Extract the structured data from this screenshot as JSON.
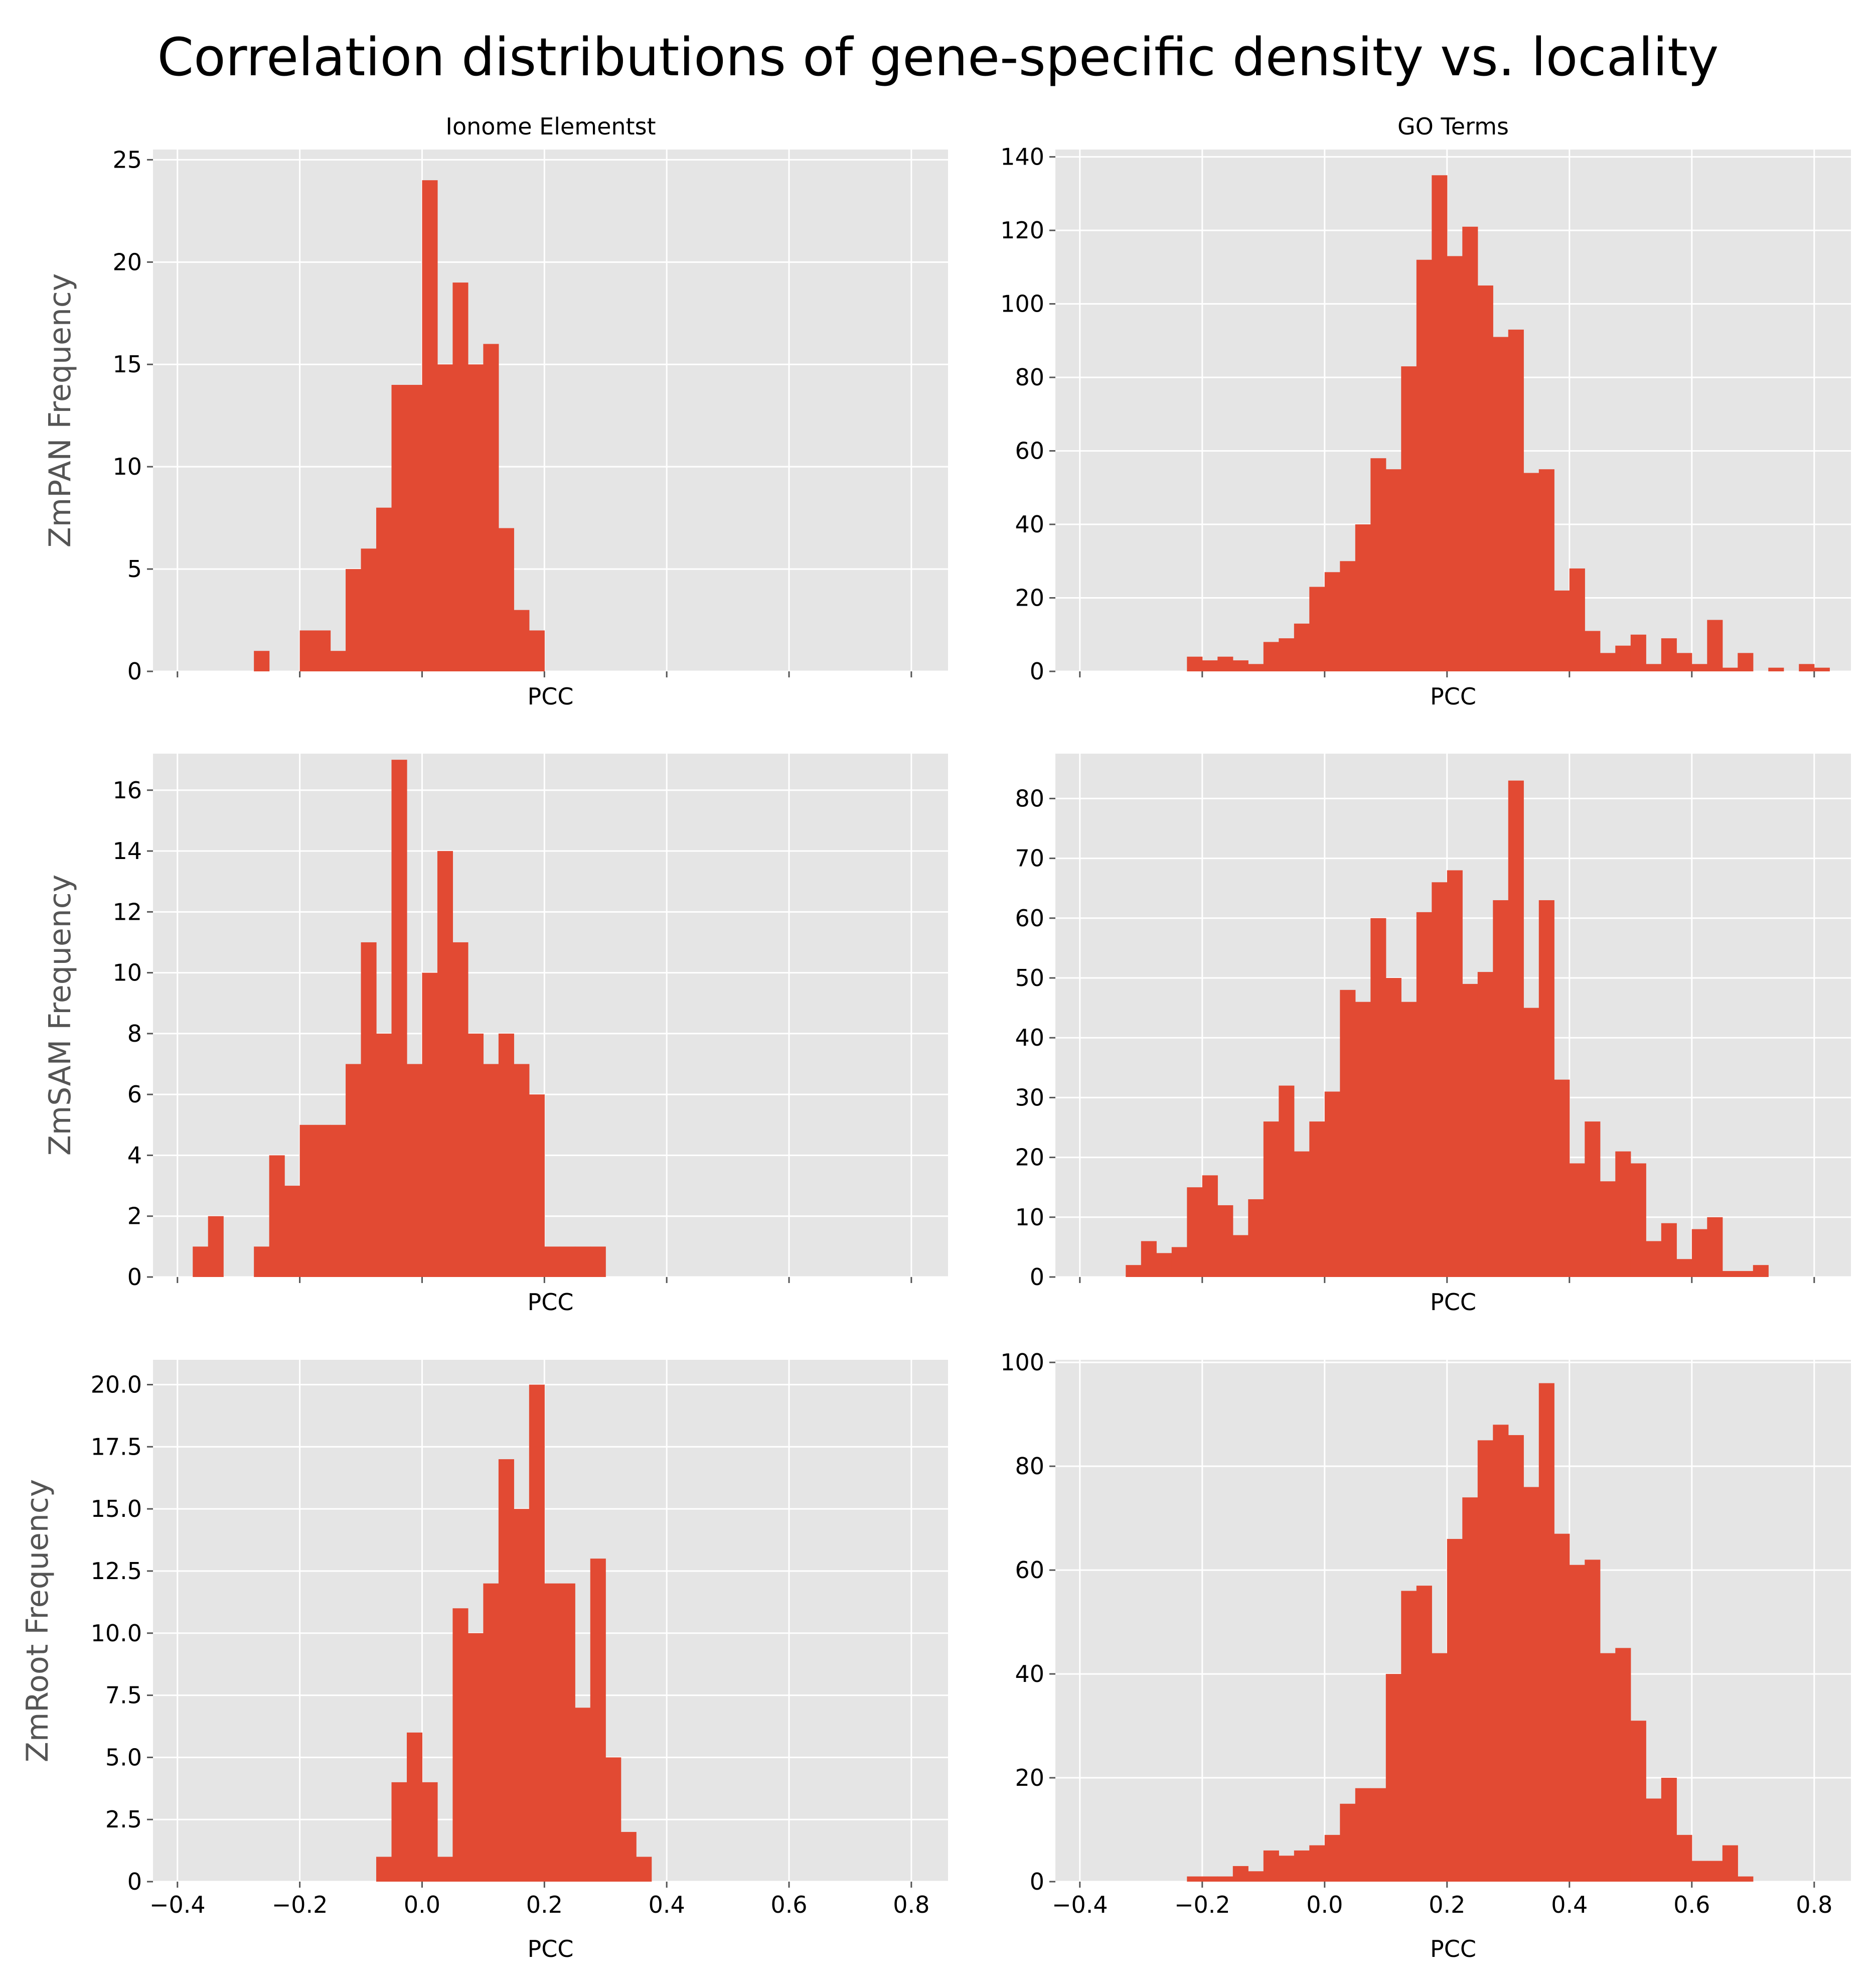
{
  "title": "Correlation distributions of gene-specific density vs. locality",
  "colors": {
    "panel_bg": "#e5e5e5",
    "grid": "#ffffff",
    "bar": "#e24a33",
    "tick": "#555555"
  },
  "chart_data": [
    {
      "type": "bar",
      "column_title": "Ionome Elementst",
      "ylabel": "ZmPAN Frequency",
      "xlabel": "PCC",
      "xlim": [
        -0.44,
        0.86
      ],
      "ylim": [
        0,
        25.5
      ],
      "xticks": [
        -0.4,
        -0.2,
        0.0,
        0.2,
        0.4,
        0.6,
        0.8
      ],
      "show_xticklabels": false,
      "yticks": [
        0,
        5,
        10,
        15,
        20,
        25
      ],
      "ytick_labels": [
        "0",
        "5",
        "10",
        "15",
        "20",
        "25"
      ],
      "bin_width": 0.025,
      "bins": [
        [
          -0.2625,
          1
        ],
        [
          -0.1875,
          2
        ],
        [
          -0.1625,
          2
        ],
        [
          -0.1375,
          1
        ],
        [
          -0.1125,
          5
        ],
        [
          -0.0875,
          6
        ],
        [
          -0.0625,
          8
        ],
        [
          -0.0375,
          14
        ],
        [
          -0.0125,
          14
        ],
        [
          0.0125,
          24
        ],
        [
          0.0375,
          15
        ],
        [
          0.0625,
          19
        ],
        [
          0.0875,
          15
        ],
        [
          0.1125,
          16
        ],
        [
          0.1375,
          7
        ],
        [
          0.1625,
          3
        ],
        [
          0.1875,
          2
        ]
      ]
    },
    {
      "type": "bar",
      "column_title": "GO Terms",
      "ylabel": "",
      "xlabel": "PCC",
      "xlim": [
        -0.44,
        0.86
      ],
      "ylim": [
        0,
        142
      ],
      "xticks": [
        -0.4,
        -0.2,
        0.0,
        0.2,
        0.4,
        0.6,
        0.8
      ],
      "show_xticklabels": false,
      "yticks": [
        0,
        20,
        40,
        60,
        80,
        100,
        120,
        140
      ],
      "ytick_labels": [
        "0",
        "20",
        "40",
        "60",
        "80",
        "100",
        "120",
        "140"
      ],
      "bin_width": 0.025,
      "bins": [
        [
          -0.2125,
          4
        ],
        [
          -0.1875,
          3
        ],
        [
          -0.1625,
          4
        ],
        [
          -0.1375,
          3
        ],
        [
          -0.1125,
          2
        ],
        [
          -0.0875,
          8
        ],
        [
          -0.0625,
          9
        ],
        [
          -0.0375,
          13
        ],
        [
          -0.0125,
          23
        ],
        [
          0.0125,
          27
        ],
        [
          0.0375,
          30
        ],
        [
          0.0625,
          40
        ],
        [
          0.0875,
          58
        ],
        [
          0.1125,
          55
        ],
        [
          0.1375,
          83
        ],
        [
          0.1625,
          112
        ],
        [
          0.1875,
          135
        ],
        [
          0.2125,
          113
        ],
        [
          0.2375,
          121
        ],
        [
          0.2625,
          105
        ],
        [
          0.2875,
          91
        ],
        [
          0.3125,
          93
        ],
        [
          0.3375,
          54
        ],
        [
          0.3625,
          55
        ],
        [
          0.3875,
          22
        ],
        [
          0.4125,
          28
        ],
        [
          0.4375,
          11
        ],
        [
          0.4625,
          5
        ],
        [
          0.4875,
          7
        ],
        [
          0.5125,
          10
        ],
        [
          0.5375,
          2
        ],
        [
          0.5625,
          9
        ],
        [
          0.5875,
          5
        ],
        [
          0.6125,
          2
        ],
        [
          0.6375,
          14
        ],
        [
          0.6625,
          1
        ],
        [
          0.6875,
          5
        ],
        [
          0.7375,
          1
        ],
        [
          0.7875,
          2
        ],
        [
          0.8125,
          1
        ]
      ]
    },
    {
      "type": "bar",
      "column_title": "",
      "ylabel": "ZmSAM Frequency",
      "xlabel": "PCC",
      "xlim": [
        -0.44,
        0.86
      ],
      "ylim": [
        0,
        17.2
      ],
      "xticks": [
        -0.4,
        -0.2,
        0.0,
        0.2,
        0.4,
        0.6,
        0.8
      ],
      "show_xticklabels": false,
      "yticks": [
        0,
        2,
        4,
        6,
        8,
        10,
        12,
        14,
        16
      ],
      "ytick_labels": [
        "0",
        "2",
        "4",
        "6",
        "8",
        "10",
        "12",
        "14",
        "16"
      ],
      "bin_width": 0.025,
      "bins": [
        [
          -0.3625,
          1
        ],
        [
          -0.3375,
          2
        ],
        [
          -0.2625,
          1
        ],
        [
          -0.2375,
          4
        ],
        [
          -0.2125,
          3
        ],
        [
          -0.1875,
          5
        ],
        [
          -0.1625,
          5
        ],
        [
          -0.1375,
          5
        ],
        [
          -0.1125,
          7
        ],
        [
          -0.0875,
          11
        ],
        [
          -0.0625,
          8
        ],
        [
          -0.0375,
          17
        ],
        [
          -0.0125,
          7
        ],
        [
          0.0125,
          10
        ],
        [
          0.0375,
          14
        ],
        [
          0.0625,
          11
        ],
        [
          0.0875,
          8
        ],
        [
          0.1125,
          7
        ],
        [
          0.1375,
          8
        ],
        [
          0.1625,
          7
        ],
        [
          0.1875,
          6
        ],
        [
          0.2125,
          1
        ],
        [
          0.2375,
          1
        ],
        [
          0.2625,
          1
        ],
        [
          0.2875,
          1
        ]
      ]
    },
    {
      "type": "bar",
      "column_title": "",
      "ylabel": "",
      "xlabel": "PCC",
      "xlim": [
        -0.44,
        0.86
      ],
      "ylim": [
        0,
        87.5
      ],
      "xticks": [
        -0.4,
        -0.2,
        0.0,
        0.2,
        0.4,
        0.6,
        0.8
      ],
      "show_xticklabels": false,
      "yticks": [
        0,
        10,
        20,
        30,
        40,
        50,
        60,
        70,
        80
      ],
      "ytick_labels": [
        "0",
        "10",
        "20",
        "30",
        "40",
        "50",
        "60",
        "70",
        "80"
      ],
      "bin_width": 0.025,
      "bins": [
        [
          -0.3125,
          2
        ],
        [
          -0.2875,
          6
        ],
        [
          -0.2625,
          4
        ],
        [
          -0.2375,
          5
        ],
        [
          -0.2125,
          15
        ],
        [
          -0.1875,
          17
        ],
        [
          -0.1625,
          12
        ],
        [
          -0.1375,
          7
        ],
        [
          -0.1125,
          13
        ],
        [
          -0.0875,
          26
        ],
        [
          -0.0625,
          32
        ],
        [
          -0.0375,
          21
        ],
        [
          -0.0125,
          26
        ],
        [
          0.0125,
          31
        ],
        [
          0.0375,
          48
        ],
        [
          0.0625,
          46
        ],
        [
          0.0875,
          60
        ],
        [
          0.1125,
          50
        ],
        [
          0.1375,
          46
        ],
        [
          0.1625,
          61
        ],
        [
          0.1875,
          66
        ],
        [
          0.2125,
          68
        ],
        [
          0.2375,
          49
        ],
        [
          0.2625,
          51
        ],
        [
          0.2875,
          63
        ],
        [
          0.3125,
          83
        ],
        [
          0.3375,
          45
        ],
        [
          0.3625,
          63
        ],
        [
          0.3875,
          33
        ],
        [
          0.4125,
          19
        ],
        [
          0.4375,
          26
        ],
        [
          0.4625,
          16
        ],
        [
          0.4875,
          21
        ],
        [
          0.5125,
          19
        ],
        [
          0.5375,
          6
        ],
        [
          0.5625,
          9
        ],
        [
          0.5875,
          3
        ],
        [
          0.6125,
          8
        ],
        [
          0.6375,
          10
        ],
        [
          0.6625,
          1
        ],
        [
          0.6875,
          1
        ],
        [
          0.7125,
          2
        ]
      ]
    },
    {
      "type": "bar",
      "column_title": "",
      "ylabel": "ZmRoot Frequency",
      "xlabel": "PCC",
      "xlim": [
        -0.44,
        0.86
      ],
      "ylim": [
        0,
        21.0
      ],
      "xticks": [
        -0.4,
        -0.2,
        0.0,
        0.2,
        0.4,
        0.6,
        0.8
      ],
      "show_xticklabels": true,
      "xtick_labels": [
        "−0.4",
        "−0.2",
        "0.0",
        "0.2",
        "0.4",
        "0.6",
        "0.8"
      ],
      "yticks": [
        0,
        2.5,
        5,
        7.5,
        10,
        12.5,
        15,
        17.5,
        20
      ],
      "ytick_labels": [
        "0",
        "2.5",
        "5.0",
        "7.5",
        "10.0",
        "12.5",
        "15.0",
        "17.5",
        "20.0"
      ],
      "bin_width": 0.025,
      "bins": [
        [
          -0.0625,
          1
        ],
        [
          -0.0375,
          4
        ],
        [
          -0.0125,
          6
        ],
        [
          0.0125,
          4
        ],
        [
          0.0375,
          1
        ],
        [
          0.0625,
          11
        ],
        [
          0.0875,
          10
        ],
        [
          0.1125,
          12
        ],
        [
          0.1375,
          17
        ],
        [
          0.1625,
          15
        ],
        [
          0.1875,
          20
        ],
        [
          0.2125,
          12
        ],
        [
          0.2375,
          12
        ],
        [
          0.2625,
          7
        ],
        [
          0.2875,
          13
        ],
        [
          0.3125,
          5
        ],
        [
          0.3375,
          2
        ],
        [
          0.3625,
          1
        ]
      ]
    },
    {
      "type": "bar",
      "column_title": "",
      "ylabel": "",
      "xlabel": "PCC",
      "xlim": [
        -0.44,
        0.86
      ],
      "ylim": [
        0,
        100.5
      ],
      "xticks": [
        -0.4,
        -0.2,
        0.0,
        0.2,
        0.4,
        0.6,
        0.8
      ],
      "show_xticklabels": true,
      "xtick_labels": [
        "−0.4",
        "−0.2",
        "0.0",
        "0.2",
        "0.4",
        "0.6",
        "0.8"
      ],
      "yticks": [
        0,
        20,
        40,
        60,
        80,
        100
      ],
      "ytick_labels": [
        "0",
        "20",
        "40",
        "60",
        "80",
        "100"
      ],
      "bin_width": 0.025,
      "bins": [
        [
          -0.2125,
          1
        ],
        [
          -0.1875,
          1
        ],
        [
          -0.1625,
          1
        ],
        [
          -0.1375,
          3
        ],
        [
          -0.1125,
          2
        ],
        [
          -0.0875,
          6
        ],
        [
          -0.0625,
          5
        ],
        [
          -0.0375,
          6
        ],
        [
          -0.0125,
          7
        ],
        [
          0.0125,
          9
        ],
        [
          0.0375,
          15
        ],
        [
          0.0625,
          18
        ],
        [
          0.0875,
          18
        ],
        [
          0.1125,
          40
        ],
        [
          0.1375,
          56
        ],
        [
          0.1625,
          57
        ],
        [
          0.1875,
          44
        ],
        [
          0.2125,
          66
        ],
        [
          0.2375,
          74
        ],
        [
          0.2625,
          85
        ],
        [
          0.2875,
          88
        ],
        [
          0.3125,
          86
        ],
        [
          0.3375,
          76
        ],
        [
          0.3625,
          96
        ],
        [
          0.3875,
          67
        ],
        [
          0.4125,
          61
        ],
        [
          0.4375,
          62
        ],
        [
          0.4625,
          44
        ],
        [
          0.4875,
          45
        ],
        [
          0.5125,
          31
        ],
        [
          0.5375,
          16
        ],
        [
          0.5625,
          20
        ],
        [
          0.5875,
          9
        ],
        [
          0.6125,
          4
        ],
        [
          0.6375,
          4
        ],
        [
          0.6625,
          7
        ],
        [
          0.6875,
          1
        ]
      ]
    }
  ]
}
